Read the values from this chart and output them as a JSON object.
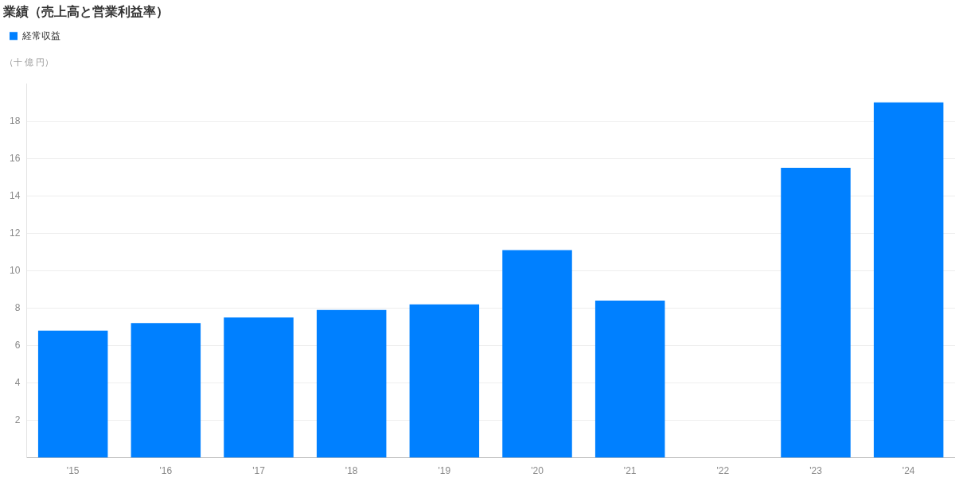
{
  "chart_data": {
    "type": "bar",
    "title": "業績（売上高と営業利益率）",
    "ylabel": "（十 億 円）",
    "categories": [
      "'15",
      "'16",
      "'17",
      "'18",
      "'19",
      "'20",
      "'21",
      "'22",
      "'23",
      "'24"
    ],
    "series": [
      {
        "name": "経常収益",
        "color": "#0080ff",
        "values": [
          6.8,
          7.2,
          7.5,
          7.9,
          8.2,
          11.1,
          8.4,
          null,
          15.5,
          19.0
        ]
      }
    ],
    "ylim": [
      0,
      20
    ],
    "yticks": [
      2,
      4,
      6,
      8,
      10,
      12,
      14,
      16,
      18
    ],
    "grid": "y",
    "legend": "top left"
  }
}
